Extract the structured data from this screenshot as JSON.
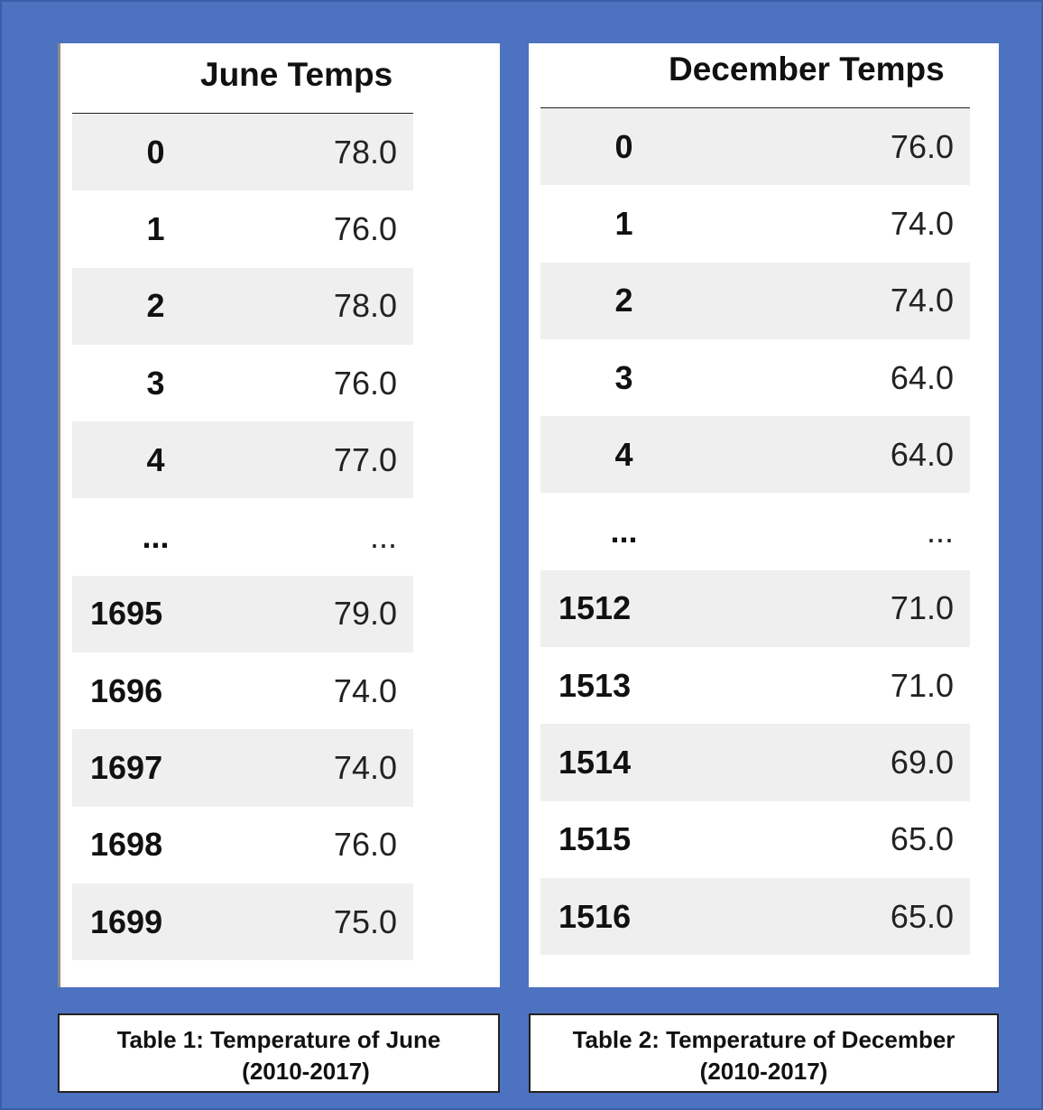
{
  "tables": [
    {
      "column_title": "June Temps",
      "rows": [
        {
          "index": "0",
          "value": "78.0"
        },
        {
          "index": "1",
          "value": "76.0"
        },
        {
          "index": "2",
          "value": "78.0"
        },
        {
          "index": "3",
          "value": "76.0"
        },
        {
          "index": "4",
          "value": "77.0"
        },
        {
          "index": "...",
          "value": "..."
        },
        {
          "index": "1695",
          "value": "79.0"
        },
        {
          "index": "1696",
          "value": "74.0"
        },
        {
          "index": "1697",
          "value": "74.0"
        },
        {
          "index": "1698",
          "value": "76.0"
        },
        {
          "index": "1699",
          "value": "75.0"
        }
      ],
      "caption_line1": "Table 1: Temperature of June",
      "caption_line2": "(2010-2017)"
    },
    {
      "column_title": "December Temps",
      "rows": [
        {
          "index": "0",
          "value": "76.0"
        },
        {
          "index": "1",
          "value": "74.0"
        },
        {
          "index": "2",
          "value": "74.0"
        },
        {
          "index": "3",
          "value": "64.0"
        },
        {
          "index": "4",
          "value": "64.0"
        },
        {
          "index": "...",
          "value": "..."
        },
        {
          "index": "1512",
          "value": "71.0"
        },
        {
          "index": "1513",
          "value": "71.0"
        },
        {
          "index": "1514",
          "value": "69.0"
        },
        {
          "index": "1515",
          "value": "65.0"
        },
        {
          "index": "1516",
          "value": "65.0"
        }
      ],
      "caption_line1": "Table 2: Temperature of December",
      "caption_line2": "(2010-2017)"
    }
  ],
  "colors": {
    "background": "#4d72bf",
    "row_shade": "#efefef"
  }
}
